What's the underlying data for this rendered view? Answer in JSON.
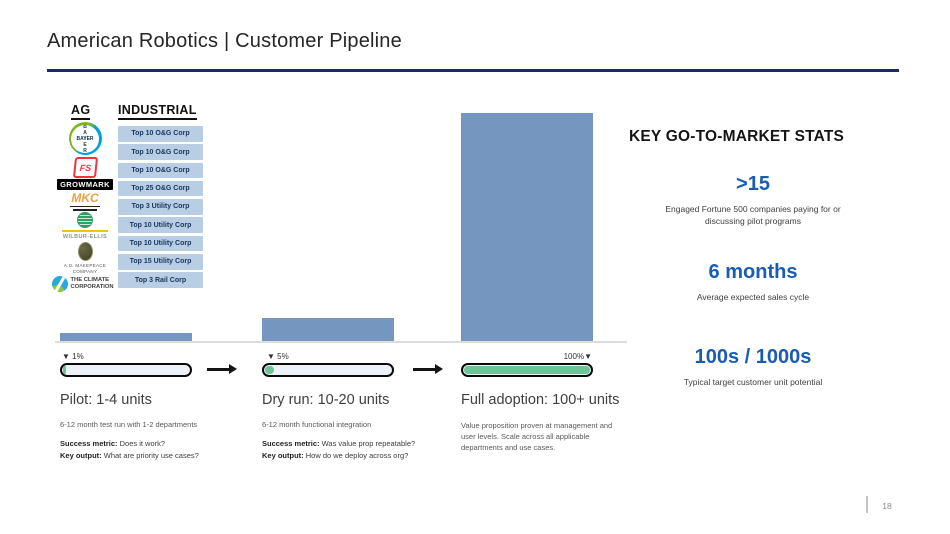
{
  "slide": {
    "title": "American Robotics | Customer Pipeline",
    "page_number": "18"
  },
  "colors": {
    "accent_navy": "#1b2a6e",
    "bar_blue": "#7596be",
    "industrial_box_blue": "#b9cde4",
    "stat_blue": "#195cb4",
    "progress_green": "#6cc497"
  },
  "left_panel": {
    "ag_header": "AG",
    "industrial_header": "INDUSTRIAL",
    "ag_logos": [
      {
        "name": "bayer",
        "label": "BAYER"
      },
      {
        "name": "fs",
        "label": "FS"
      },
      {
        "name": "growmark",
        "label": "GROWMARK"
      },
      {
        "name": "mkc",
        "label": "MKC"
      },
      {
        "name": "wilbur-ellis",
        "label": "WILBUR-ELLIS"
      },
      {
        "name": "ad-makepeace",
        "label": "A.D. MAKEPEACE COMPANY"
      },
      {
        "name": "climate-corporation",
        "label": "THE CLIMATE CORPORATION"
      }
    ],
    "industrial_boxes": [
      "Top 10 O&G Corp",
      "Top 10 O&G Corp",
      "Top 10 O&G Corp",
      "Top 25 O&G Corp",
      "Top 3 Utility Corp",
      "Top 10 Utility Corp",
      "Top 10 Utility Corp",
      "Top 15 Utility Corp",
      "Top 3 Rail Corp"
    ]
  },
  "stages": [
    {
      "title": "Pilot: 1-4 units",
      "subtitle": "6-12 month test run with 1-2 departments",
      "progress_label": "▼ 1%",
      "detail1_lead": "Success metric:",
      "detail1_text": " Does it work?",
      "detail2_lead": "Key output:",
      "detail2_text": " What are priority use cases?"
    },
    {
      "title": "Dry run: 10-20 units",
      "subtitle": "6-12 month functional integration",
      "progress_label": "▼ 5%",
      "detail1_lead": "Success metric:",
      "detail1_text": " Was value prop repeatable?",
      "detail2_lead": "Key output:",
      "detail2_text": " How do we deploy across org?"
    },
    {
      "title": "Full adoption: 100+ units",
      "progress_label": "100%▼",
      "body": "Value proposition proven at management and user levels. Scale across all applicable departments and use cases."
    }
  ],
  "chart_data": {
    "type": "bar",
    "categories": [
      "Pilot: 1-4 units",
      "Dry run: 10-20 units",
      "Full adoption: 100+ units"
    ],
    "values": [
      3.5,
      10,
      100
    ],
    "progress_percent": [
      1,
      5,
      100
    ],
    "title": "",
    "xlabel": "",
    "ylabel": "",
    "ylim": [
      0,
      100
    ],
    "grid": false,
    "legend": false,
    "bar_color": "#7596be",
    "note": "bar heights relative to the Full adoption bar = 100"
  },
  "stats_panel": {
    "header": "KEY GO-TO-MARKET STATS",
    "stats": [
      {
        "value": ">15",
        "description": "Engaged Fortune 500 companies paying for or discussing pilot programs"
      },
      {
        "value": "6 months",
        "description": "Average expected sales cycle"
      },
      {
        "value": "100s / 1000s",
        "description": "Typical target customer unit potential"
      }
    ]
  }
}
